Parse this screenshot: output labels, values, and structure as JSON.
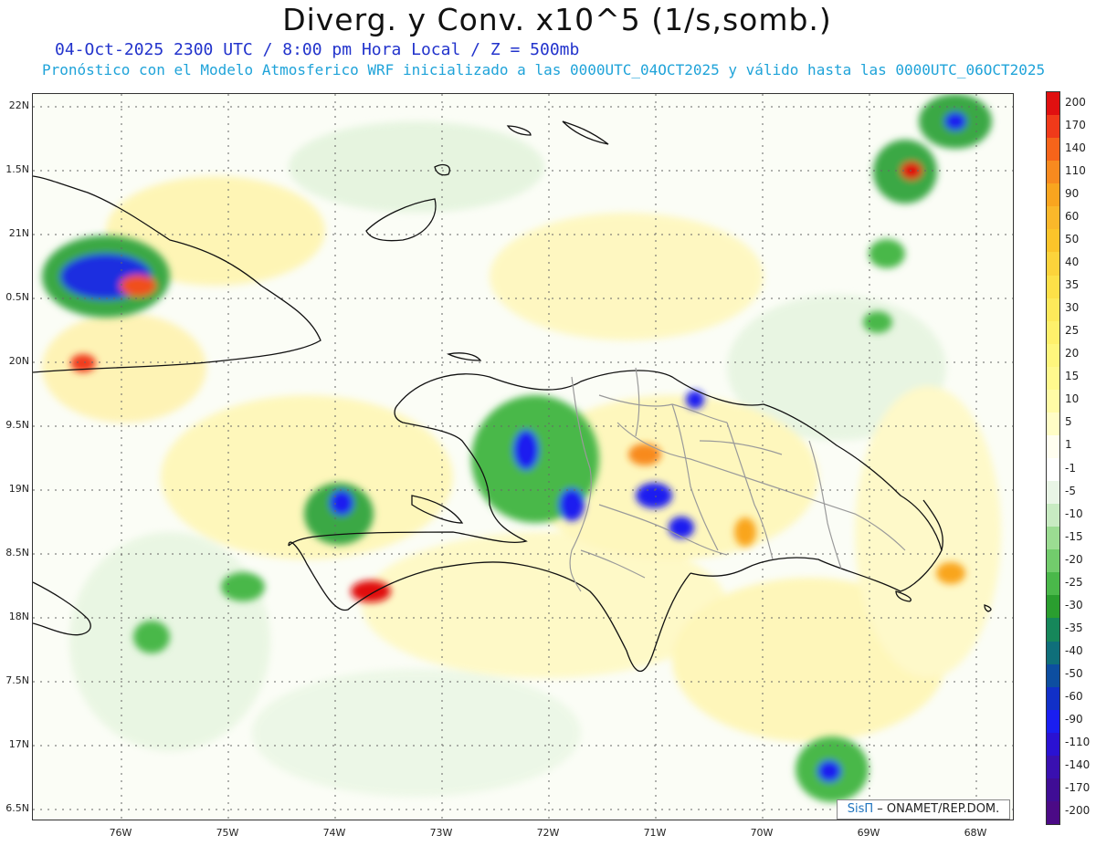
{
  "header": {
    "title": "Diverg. y Conv. x10^5 (1/s,somb.)",
    "subtitle_date": "04-Oct-2025  2300 UTC / 8:00 pm Hora Local / Z = 500mb",
    "subtitle_run": "Pronóstico con el Modelo Atmosferico WRF inicializado a las 0000UTC_04OCT2025 y válido hasta las  0000UTC_06OCT2025"
  },
  "map": {
    "lat_labels": [
      "22N",
      "1.5N",
      "21N",
      "0.5N",
      "20N",
      "9.5N",
      "19N",
      "8.5N",
      "18N",
      "7.5N",
      "17N",
      "6.5N"
    ],
    "lon_labels": [
      "76W",
      "75W",
      "74W",
      "73W",
      "72W",
      "71W",
      "70W",
      "69W",
      "68W"
    ]
  },
  "colorbar": {
    "labels": [
      "200",
      "170",
      "140",
      "110",
      "90",
      "60",
      "50",
      "40",
      "35",
      "30",
      "25",
      "20",
      "15",
      "10",
      "5",
      "1",
      "-1",
      "-5",
      "-10",
      "-15",
      "-20",
      "-25",
      "-30",
      "-35",
      "-40",
      "-50",
      "-60",
      "-90",
      "-110",
      "-140",
      "-170",
      "-200"
    ],
    "colors": [
      "#e01010",
      "#f03a1a",
      "#f6641a",
      "#f88a1f",
      "#f9a51f",
      "#fab72a",
      "#fbc42a",
      "#fcd33b",
      "#fde048",
      "#fde95a",
      "#fef06b",
      "#fef67d",
      "#fff98e",
      "#fffba6",
      "#fffdc6",
      "#fffef0",
      "#ffffff",
      "#e9f5e6",
      "#c8ebc2",
      "#9bdc92",
      "#72cc6c",
      "#4ab84a",
      "#2a9e2f",
      "#16875a",
      "#0f6f7a",
      "#0d4ea0",
      "#1130c8",
      "#1a1ef0",
      "#2a12d2",
      "#3910b0",
      "#3f0d95",
      "#4b0a86"
    ]
  },
  "credit": {
    "brand": "SisΠ",
    "text": " – ONAMET/REP.DOM."
  }
}
